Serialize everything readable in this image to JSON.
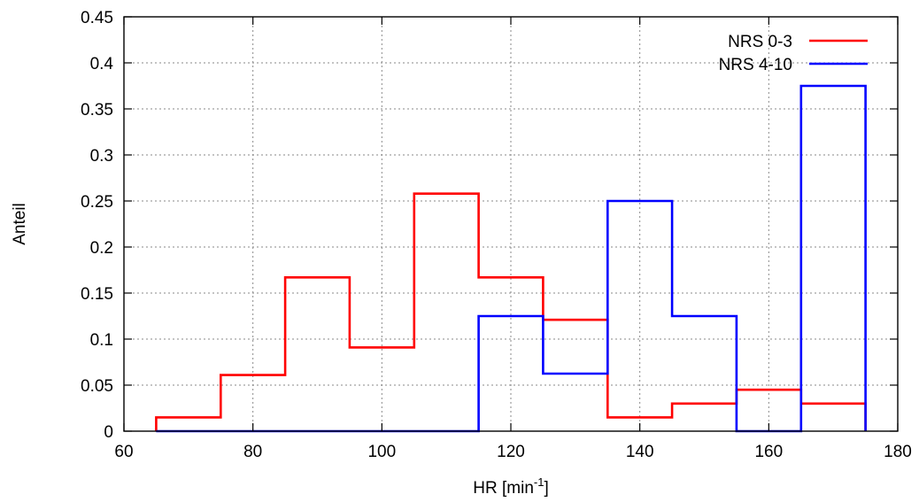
{
  "chart_data": {
    "type": "line",
    "step": "histogram",
    "xlabel": "HR [min",
    "xlabel_superscript": "-1",
    "xlabel_suffix": "]",
    "ylabel": "Anteil",
    "xlim": [
      60,
      180
    ],
    "ylim": [
      0,
      0.45
    ],
    "x_ticks": [
      60,
      80,
      100,
      120,
      140,
      160,
      180
    ],
    "y_ticks": [
      "0",
      "0.05",
      "0.1",
      "0.15",
      "0.2",
      "0.25",
      "0.3",
      "0.35",
      "0.4",
      "0.45"
    ],
    "grid": true,
    "legend_position": "top-right",
    "bin_edges": [
      65,
      75,
      85,
      95,
      105,
      115,
      125,
      135,
      145,
      155,
      165,
      175
    ],
    "series": [
      {
        "name": "NRS 0-3",
        "color": "#ff0000",
        "values": [
          0.015,
          0.061,
          0.167,
          0.091,
          0.258,
          0.167,
          0.121,
          0.015,
          0.03,
          0.045,
          0.03
        ]
      },
      {
        "name": "NRS 4-10",
        "color": "#0000ff",
        "values": [
          0,
          0,
          0,
          0,
          0,
          0.125,
          0.0625,
          0.25,
          0.125,
          0,
          0.375
        ]
      }
    ]
  }
}
